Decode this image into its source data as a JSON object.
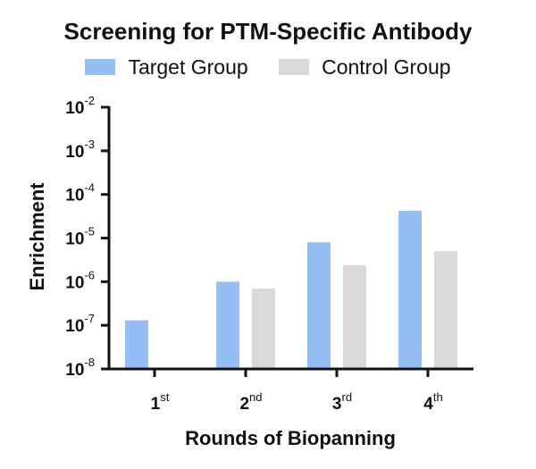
{
  "chart_data": {
    "type": "bar",
    "title": "Screening for PTM-Specific Antibody",
    "xlabel": "Rounds of Biopanning",
    "ylabel": "Enrichment",
    "yscale": "log",
    "ylim": [
      1e-08,
      0.01
    ],
    "grid": false,
    "legend_position": "top",
    "y_tick_labels": [
      {
        "base": "10",
        "exp": "-2",
        "value": 0.01
      },
      {
        "base": "10",
        "exp": "-3",
        "value": 0.001
      },
      {
        "base": "10",
        "exp": "-4",
        "value": 0.0001
      },
      {
        "base": "10",
        "exp": "-5",
        "value": 1e-05
      },
      {
        "base": "10",
        "exp": "-6",
        "value": 1e-06
      },
      {
        "base": "10",
        "exp": "-7",
        "value": 1e-07
      },
      {
        "base": "10",
        "exp": "-8",
        "value": 1e-08
      }
    ],
    "categories": [
      {
        "base": "1",
        "sup": "st"
      },
      {
        "base": "2",
        "sup": "nd"
      },
      {
        "base": "3",
        "sup": "rd"
      },
      {
        "base": "4",
        "sup": "th"
      }
    ],
    "series": [
      {
        "name": "Target Group",
        "color": "#93bff5",
        "values": [
          1.3e-07,
          1e-06,
          8e-06,
          4.2e-05
        ]
      },
      {
        "name": "Control Group",
        "color": "#d9d9d9",
        "values": [
          null,
          7e-07,
          2.4e-06,
          5e-06
        ]
      }
    ]
  }
}
